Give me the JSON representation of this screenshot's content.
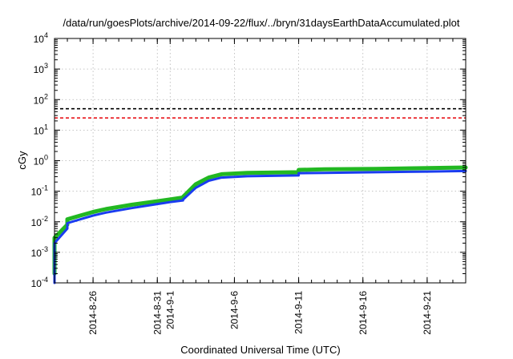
{
  "chart_data": {
    "type": "line",
    "title": "/data/run/goesPlots/archive/2014-09-22/flux/../bryn/31daysEarthDataAccumulated.plot",
    "xlabel": "Coordinated Universal Time (UTC)",
    "ylabel": "cGy",
    "yscale": "log",
    "ylim": [
      0.0001,
      10000
    ],
    "xlim": [
      "2014-08-23",
      "2014-09-24"
    ],
    "grid": true,
    "legend": "none",
    "y_ticks": [
      {
        "base": "10",
        "exp": "-4"
      },
      {
        "base": "10",
        "exp": "-3"
      },
      {
        "base": "10",
        "exp": "-2"
      },
      {
        "base": "10",
        "exp": "-1"
      },
      {
        "base": "10",
        "exp": "0"
      },
      {
        "base": "10",
        "exp": "1"
      },
      {
        "base": "10",
        "exp": "2"
      },
      {
        "base": "10",
        "exp": "3"
      },
      {
        "base": "10",
        "exp": "4"
      }
    ],
    "x_ticks": [
      {
        "date": "2014-08-26",
        "label": "2014-8-26"
      },
      {
        "date": "2014-08-31",
        "label": "2014-8-31"
      },
      {
        "date": "2014-09-01",
        "label": "2014-9-1"
      },
      {
        "date": "2014-09-06",
        "label": "2014-9-6"
      },
      {
        "date": "2014-09-11",
        "label": "2014-9-11"
      },
      {
        "date": "2014-09-16",
        "label": "2014-9-16"
      },
      {
        "date": "2014-09-21",
        "label": "2014-9-21"
      }
    ],
    "hlines": [
      {
        "value": 50,
        "color": "#000000"
      },
      {
        "value": 25,
        "color": "#e8141a"
      }
    ],
    "series": [
      {
        "color": "#22b822",
        "x": [
          "2014-08-23",
          "2014-08-23",
          "2014-08-23",
          "2014-08-24",
          "2014-08-24",
          "2014-08-25",
          "2014-08-26",
          "2014-08-27",
          "2014-08-29",
          "2014-08-31",
          "2014-09-01",
          "2014-09-02",
          "2014-09-02",
          "2014-09-03",
          "2014-09-04",
          "2014-09-05",
          "2014-09-07",
          "2014-09-11",
          "2014-09-11",
          "2014-09-13",
          "2014-09-17",
          "2014-09-21",
          "2014-09-24"
        ],
        "y": [
          0.0002,
          0.0008,
          0.003,
          0.008,
          0.012,
          0.016,
          0.021,
          0.026,
          0.036,
          0.047,
          0.054,
          0.062,
          0.065,
          0.17,
          0.28,
          0.36,
          0.4,
          0.42,
          0.5,
          0.52,
          0.54,
          0.57,
          0.6
        ]
      },
      {
        "color": "#1a3cf0",
        "x": [
          "2014-08-23",
          "2014-08-23",
          "2014-08-23",
          "2014-08-24",
          "2014-08-24",
          "2014-08-25",
          "2014-08-26",
          "2014-08-27",
          "2014-08-29",
          "2014-08-31",
          "2014-09-01",
          "2014-09-02",
          "2014-09-02",
          "2014-09-03",
          "2014-09-04",
          "2014-09-05",
          "2014-09-07",
          "2014-09-11",
          "2014-09-11",
          "2014-09-13",
          "2014-09-17",
          "2014-09-21",
          "2014-09-24"
        ],
        "y": [
          0.0001,
          0.0005,
          0.002,
          0.006,
          0.009,
          0.012,
          0.016,
          0.02,
          0.028,
          0.038,
          0.044,
          0.05,
          0.053,
          0.13,
          0.22,
          0.28,
          0.31,
          0.33,
          0.39,
          0.4,
          0.42,
          0.44,
          0.46
        ]
      }
    ]
  }
}
